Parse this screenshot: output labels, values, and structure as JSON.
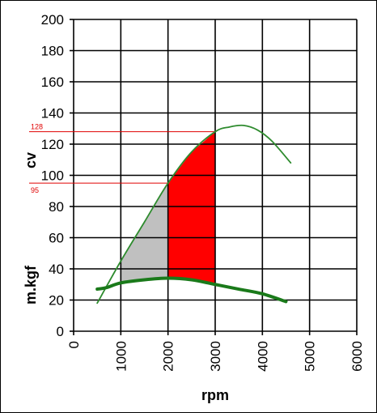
{
  "chart_data": {
    "type": "line",
    "title": "",
    "xlabel": "rpm",
    "ylabel_upper": "cv",
    "ylabel_lower": "m.kgf",
    "xlim": [
      0,
      6000
    ],
    "ylim": [
      0,
      200
    ],
    "x_ticks": [
      "0",
      "1000",
      "2000",
      "3000",
      "4000",
      "5000",
      "6000"
    ],
    "y_ticks": [
      "0",
      "20",
      "40",
      "60",
      "80",
      "100",
      "120",
      "140",
      "160",
      "180",
      "200"
    ],
    "grid": true,
    "series": [
      {
        "color": "#2e8b2e",
        "x": [
          500,
          1000,
          1500,
          2000,
          2500,
          3000,
          3300,
          3600,
          3900,
          4200,
          4600
        ],
        "y": [
          18,
          45,
          70,
          95,
          115,
          128,
          131,
          132,
          129,
          122,
          108
        ]
      },
      {
        "color": "#1a7a1a",
        "x": [
          500,
          700,
          1000,
          1500,
          2000,
          2500,
          3000,
          3500,
          4000,
          4500
        ],
        "y": [
          27,
          28,
          31,
          33,
          34,
          33,
          30,
          27,
          24,
          19
        ]
      }
    ],
    "shaded_regions": [
      {
        "color": "#c0c0c0",
        "x_from": 1000,
        "x_to": 2000
      },
      {
        "color": "#ff0000",
        "x_from": 2000,
        "x_to": 3000
      }
    ],
    "reference_lines": [
      {
        "y": 128,
        "label": "128",
        "x_to": 3000,
        "color": "#e00000"
      },
      {
        "y": 95,
        "label": "95",
        "x_to": 2000,
        "color": "#e00000"
      }
    ]
  }
}
